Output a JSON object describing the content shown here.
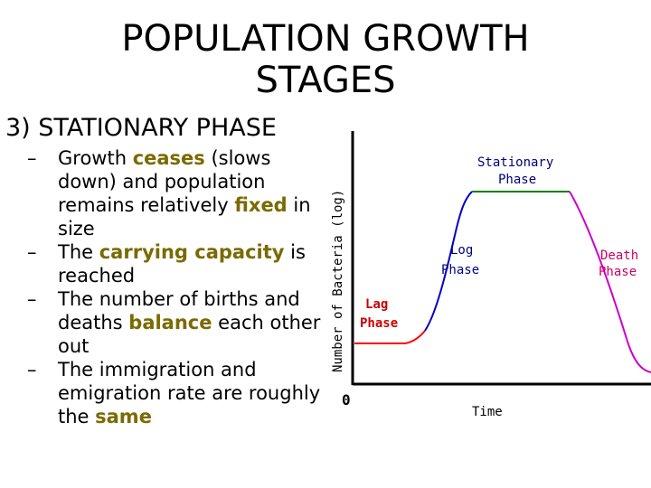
{
  "slide": {
    "title_line1": "POPULATION GROWTH",
    "title_line2": "STAGES",
    "heading": "3) STATIONARY  PHASE"
  },
  "bullets": [
    {
      "parts": [
        {
          "t": "Growth "
        },
        {
          "t": "ceases",
          "kw": true
        },
        {
          "t": " (slows down) and population remains relatively "
        },
        {
          "t": "fixed",
          "kw": true
        },
        {
          "t": " in size"
        }
      ]
    },
    {
      "parts": [
        {
          "t": "The "
        },
        {
          "t": "carrying capacity",
          "kw": true
        },
        {
          "t": " is reached"
        }
      ]
    },
    {
      "parts": [
        {
          "t": "The number of births and deaths "
        },
        {
          "t": "balance",
          "kw": true
        },
        {
          "t": " each other out"
        }
      ]
    },
    {
      "parts": [
        {
          "t": "The immigration and emigration rate are roughly the "
        },
        {
          "t": "same",
          "kw": true
        }
      ]
    }
  ],
  "chart_data": {
    "type": "line",
    "xlabel": "Time",
    "ylabel": "Number of Bacteria (log)",
    "origin_label": "0",
    "phases": [
      {
        "name": "Lag Phase",
        "line1": "Lag",
        "line2": "Phase",
        "color": "#ff0000"
      },
      {
        "name": "Log Phase",
        "line1": "Log",
        "line2": "Phase",
        "color": "#0000cc"
      },
      {
        "name": "Stationary Phase",
        "line1": "Stationary",
        "line2": "Phase",
        "color": "#008000"
      },
      {
        "name": "Death Phase",
        "line1": "Death",
        "line2": "Phase",
        "color": "#cc00cc"
      }
    ],
    "colors": {
      "axis": "#000000",
      "label": "#000000",
      "lag_label": "#cc0000",
      "log_label": "#000080",
      "stationary_label": "#000080",
      "death_label": "#cc0066"
    }
  }
}
